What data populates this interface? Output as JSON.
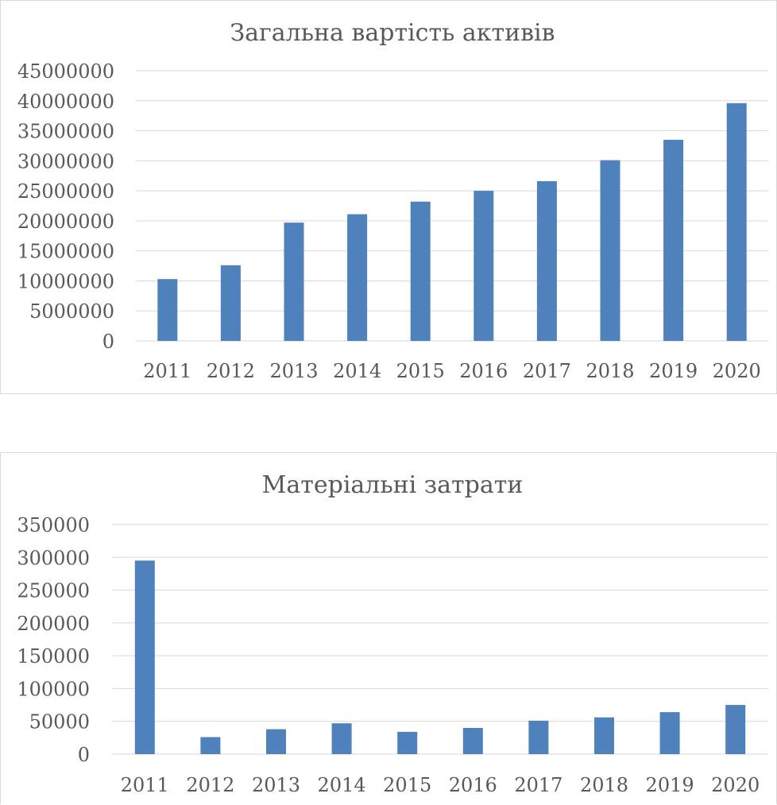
{
  "chart_data": [
    {
      "type": "bar",
      "title": "Загальна вартість активів",
      "xlabel": "",
      "ylabel": "",
      "categories": [
        "2011",
        "2012",
        "2013",
        "2014",
        "2015",
        "2016",
        "2017",
        "2018",
        "2019",
        "2020"
      ],
      "values": [
        10300000,
        12600000,
        19700000,
        21100000,
        23200000,
        25000000,
        26600000,
        30100000,
        33500000,
        39600000
      ],
      "ylim": [
        0,
        45000000
      ],
      "yticks": [
        "0",
        "5000000",
        "10000000",
        "15000000",
        "20000000",
        "25000000",
        "30000000",
        "35000000",
        "40000000",
        "45000000"
      ],
      "grid": true,
      "legend": "none",
      "color": "#4f81bd"
    },
    {
      "type": "bar",
      "title": "Матеріальні затрати",
      "xlabel": "",
      "ylabel": "",
      "categories": [
        "2011",
        "2012",
        "2013",
        "2014",
        "2015",
        "2016",
        "2017",
        "2018",
        "2019",
        "2020"
      ],
      "values": [
        295000,
        26000,
        38000,
        47000,
        34000,
        40000,
        51000,
        56000,
        64000,
        75000
      ],
      "ylim": [
        0,
        350000
      ],
      "yticks": [
        "0",
        "50000",
        "100000",
        "150000",
        "200000",
        "250000",
        "300000",
        "350000"
      ],
      "grid": true,
      "legend": "none",
      "color": "#4f81bd"
    }
  ]
}
